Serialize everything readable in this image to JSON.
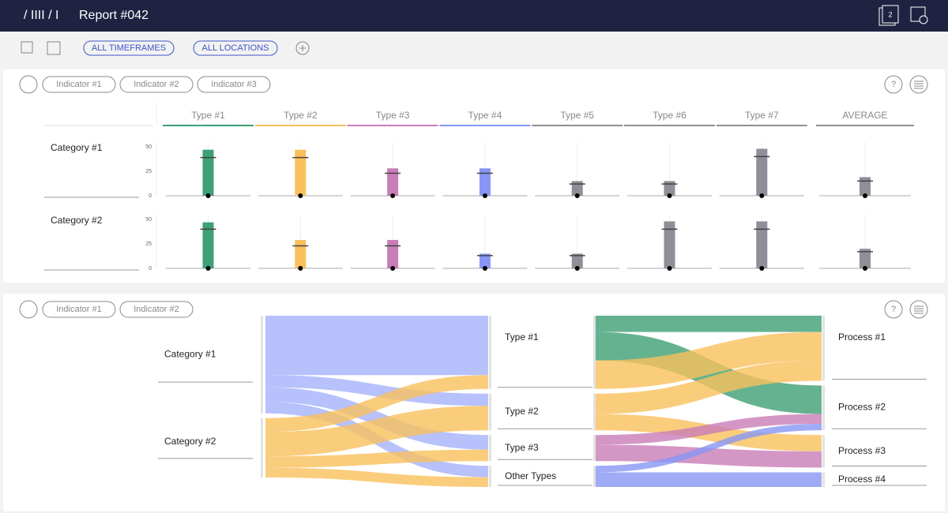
{
  "header": {
    "breadcrumb": "/ IIII / I",
    "title": "Report #042",
    "badge": "2"
  },
  "toolbar": {
    "filters": [
      "ALL TIMEFRAMES",
      "ALL LOCATIONS"
    ]
  },
  "panel1": {
    "indicators": [
      "Indicator #1",
      "Indicator #2",
      "Indicator #3"
    ],
    "help": "?",
    "columns": [
      {
        "name": "Type #1",
        "color": "#3f9f75"
      },
      {
        "name": "Type #2",
        "color": "#f9c05c"
      },
      {
        "name": "Type #3",
        "color": "#c97db6"
      },
      {
        "name": "Type #4",
        "color": "#8796f4"
      },
      {
        "name": "Type #5",
        "color": "#8e8f98"
      },
      {
        "name": "Type #6",
        "color": "#8e8f98"
      },
      {
        "name": "Type #7",
        "color": "#8e8f98"
      },
      {
        "name": "AVERAGE",
        "color": "#8e8f98"
      }
    ],
    "ylim": [
      0,
      50
    ],
    "yticks": [
      0,
      25,
      50
    ],
    "rows": [
      {
        "label": "Category #1",
        "values": [
          47,
          47,
          28,
          28,
          15,
          15,
          48,
          19
        ],
        "targets": [
          39,
          39,
          23,
          23,
          12,
          12,
          40,
          15
        ]
      },
      {
        "label": "Category #2",
        "values": [
          47,
          29,
          29,
          15,
          15,
          48,
          48,
          20
        ],
        "targets": [
          40,
          23,
          23,
          13,
          13,
          40,
          40,
          17
        ]
      }
    ]
  },
  "panel2": {
    "indicators": [
      "Indicator #1",
      "Indicator #2"
    ],
    "help": "?",
    "nodes": [
      [
        "Category #1",
        "Category #2"
      ],
      [
        "Type #1",
        "Type #2",
        "Type #3",
        "Other Types"
      ],
      [
        "Process #1",
        "Process #2",
        "Process #3",
        "Process #4"
      ]
    ],
    "flows": [
      {
        "stage": 0,
        "source": 0,
        "target": 0,
        "value": 73,
        "color": "#a5b2fb"
      },
      {
        "stage": 0,
        "source": 0,
        "target": 1,
        "value": 15,
        "color": "#a5b2fb"
      },
      {
        "stage": 0,
        "source": 0,
        "target": 2,
        "value": 18,
        "color": "#a5b2fb"
      },
      {
        "stage": 0,
        "source": 0,
        "target": 3,
        "value": 14,
        "color": "#a5b2fb"
      },
      {
        "stage": 0,
        "source": 1,
        "target": 0,
        "value": 17,
        "color": "#f9c05c"
      },
      {
        "stage": 0,
        "source": 1,
        "target": 1,
        "value": 30,
        "color": "#f9c05c"
      },
      {
        "stage": 0,
        "source": 1,
        "target": 2,
        "value": 14,
        "color": "#f9c05c"
      },
      {
        "stage": 0,
        "source": 1,
        "target": 3,
        "value": 12,
        "color": "#f9c05c"
      },
      {
        "stage": 1,
        "source": 0,
        "target": 0,
        "value": 20,
        "color": "#3f9f75"
      },
      {
        "stage": 1,
        "source": 0,
        "target": 1,
        "value": 35,
        "color": "#3f9f75"
      },
      {
        "stage": 1,
        "source": 0,
        "target": 0,
        "value": 35,
        "color": "#f9c05c"
      },
      {
        "stage": 1,
        "source": 1,
        "target": 0,
        "value": 25,
        "color": "#f9c05c"
      },
      {
        "stage": 1,
        "source": 1,
        "target": 2,
        "value": 20,
        "color": "#f9c05c"
      },
      {
        "stage": 1,
        "source": 2,
        "target": 1,
        "value": 12,
        "color": "#c97db6"
      },
      {
        "stage": 1,
        "source": 2,
        "target": 2,
        "value": 20,
        "color": "#c97db6"
      },
      {
        "stage": 1,
        "source": 3,
        "target": 1,
        "value": 8,
        "color": "#8796f4"
      },
      {
        "stage": 1,
        "source": 3,
        "target": 3,
        "value": 18,
        "color": "#8796f4"
      }
    ]
  }
}
